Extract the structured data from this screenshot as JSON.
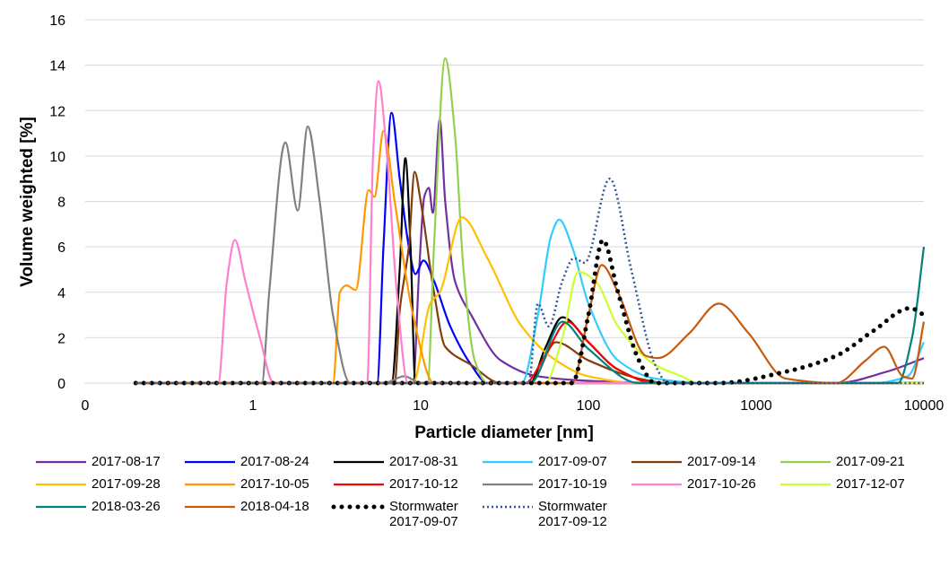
{
  "chart_data": {
    "type": "line",
    "xlabel": "Particle diameter [nm]",
    "ylabel": "Volume weighted [%]",
    "xscale": "log",
    "xlim": [
      0.1,
      10000
    ],
    "xticks": [
      {
        "value": 0.1,
        "label": "0"
      },
      1,
      10,
      100,
      1000,
      10000
    ],
    "ylim": [
      0,
      16
    ],
    "yticks": [
      0,
      2,
      4,
      6,
      8,
      10,
      12,
      14,
      16
    ],
    "grid": true,
    "legend": "bottom",
    "series": [
      {
        "name": "2017-08-17",
        "color": "#7030a0",
        "style": "solid",
        "x": [
          0.2,
          9,
          9.8,
          10.5,
          11.2,
          11.8,
          13,
          14,
          16,
          20,
          30,
          50,
          100,
          300,
          1000,
          3000,
          6000,
          10000
        ],
        "values": [
          0,
          0,
          5,
          8.2,
          8.6,
          7.5,
          11.6,
          8,
          4.5,
          3,
          1,
          0.3,
          0.1,
          0,
          0,
          0,
          0.5,
          1.1
        ]
      },
      {
        "name": "2017-08-24",
        "color": "#0000ff",
        "style": "solid",
        "x": [
          0.2,
          5.5,
          6,
          6.7,
          7.5,
          8.5,
          9.3,
          10.4,
          12,
          15,
          20,
          25,
          10000
        ],
        "values": [
          0,
          0,
          6,
          11.9,
          9,
          6,
          4.8,
          5.4,
          4.5,
          2.5,
          0.8,
          0,
          0
        ]
      },
      {
        "name": "2017-08-31",
        "color": "#000000",
        "style": "solid",
        "x": [
          0.2,
          6.7,
          7.5,
          8.1,
          8.7,
          9.3,
          45,
          55,
          70,
          100,
          150,
          250,
          10000
        ],
        "values": [
          0,
          0,
          5,
          9.9,
          6,
          0,
          0,
          1.5,
          2.9,
          1.8,
          0.6,
          0,
          0
        ]
      },
      {
        "name": "2017-09-07",
        "color": "#33ccff",
        "style": "solid",
        "x": [
          0.2,
          40,
          50,
          60,
          67,
          80,
          100,
          150,
          250,
          500,
          5000,
          8000,
          10000
        ],
        "values": [
          0,
          0,
          3,
          6.5,
          7.2,
          6,
          3.5,
          1,
          0.2,
          0,
          0,
          0.3,
          1.8
        ]
      },
      {
        "name": "2017-09-14",
        "color": "#843c0c",
        "style": "solid",
        "x": [
          0.2,
          7,
          7.5,
          8.5,
          9.2,
          10,
          12,
          14,
          20,
          30,
          45,
          64,
          100,
          200,
          300,
          10000
        ],
        "values": [
          0,
          0,
          3.2,
          6,
          9.3,
          8,
          4,
          1.6,
          0.8,
          0,
          0,
          1.8,
          1,
          0.2,
          0,
          0
        ]
      },
      {
        "name": "2017-09-21",
        "color": "#92d050",
        "style": "solid",
        "x": [
          0.2,
          11,
          12,
          14,
          16,
          18,
          21,
          25,
          10000
        ],
        "values": [
          0,
          0,
          6,
          14.3,
          11,
          5,
          1,
          0,
          0
        ]
      },
      {
        "name": "2017-09-28",
        "color": "#ffc000",
        "style": "solid",
        "x": [
          0.2,
          9,
          11.4,
          13,
          17.6,
          25,
          40,
          64,
          100,
          200,
          10000
        ],
        "values": [
          0,
          0,
          3.5,
          4,
          7.3,
          5.5,
          2.5,
          1,
          0.3,
          0,
          0
        ]
      },
      {
        "name": "2017-10-05",
        "color": "#ff9900",
        "style": "solid",
        "x": [
          0.2,
          3,
          3.3,
          3.6,
          4.1,
          4.9,
          5.3,
          6,
          7,
          9,
          12,
          10000
        ],
        "values": [
          0,
          0,
          4,
          4.3,
          4.1,
          8.5,
          8.2,
          11.1,
          8,
          3,
          0,
          0
        ]
      },
      {
        "name": "2017-10-12",
        "color": "#ff0000",
        "style": "solid",
        "x": [
          0.2,
          42,
          55,
          75,
          100,
          150,
          250,
          10000
        ],
        "values": [
          0,
          0,
          1.2,
          2.7,
          1.8,
          0.6,
          0,
          0
        ]
      },
      {
        "name": "2017-10-19",
        "color": "#808080",
        "style": "solid",
        "x": [
          0.2,
          1.13,
          1.25,
          1.56,
          1.85,
          2.12,
          2.5,
          3,
          3.8,
          6,
          8,
          10,
          10000
        ],
        "values": [
          0,
          0,
          4,
          10.6,
          7.6,
          11.3,
          8,
          3,
          0,
          0,
          0.3,
          0,
          0
        ]
      },
      {
        "name": "2017-10-26",
        "color": "#ff7fcf",
        "style": "solid",
        "x": [
          0.2,
          0.62,
          0.7,
          0.78,
          0.9,
          1.1,
          1.33,
          4.8,
          5.2,
          5.6,
          6.3,
          7.2,
          8.4,
          10000
        ],
        "values": [
          0,
          0,
          4.5,
          6.3,
          4.5,
          2,
          0,
          0,
          10,
          13.3,
          10,
          4,
          0,
          0
        ]
      },
      {
        "name": "2017-12-07",
        "color": "#ccff33",
        "style": "solid",
        "x": [
          0.2,
          55,
          70,
          87,
          110,
          150,
          250,
          360,
          450,
          10000
        ],
        "values": [
          0,
          0,
          2,
          4.9,
          4.5,
          2.5,
          0.8,
          0.3,
          0,
          0
        ]
      },
      {
        "name": "2018-03-26",
        "color": "#00827f",
        "style": "solid",
        "x": [
          0.2,
          45,
          70,
          100,
          200,
          7000,
          8500,
          10000
        ],
        "values": [
          0,
          0,
          2.7,
          1.5,
          0,
          0,
          2,
          6
        ]
      },
      {
        "name": "2018-04-18",
        "color": "#c55a11",
        "style": "solid",
        "x": [
          0.2,
          80,
          100,
          120,
          150,
          220,
          260,
          400,
          600,
          900,
          1500,
          3000,
          4500,
          5800,
          7500,
          8500,
          10000
        ],
        "values": [
          0,
          0,
          3,
          5.2,
          4,
          1.2,
          1.1,
          2.2,
          3.5,
          2.2,
          0.2,
          0,
          1,
          1.6,
          0.3,
          0.2,
          2.7
        ]
      },
      {
        "name": "Stormwater 2017-09-07",
        "color": "#000000",
        "style": "dots",
        "x": [
          0.2,
          80,
          100,
          122,
          150,
          200,
          250,
          600,
          1500,
          3000,
          5000,
          8300,
          10000
        ],
        "values": [
          0,
          0,
          3,
          6.3,
          4,
          1,
          0,
          0,
          0.5,
          1.2,
          2.3,
          3.3,
          3.0
        ]
      },
      {
        "name": "Stormwater 2017-09-12",
        "color": "#2f5597",
        "style": "dotted",
        "x": [
          0.2,
          44,
          50,
          58,
          70,
          82,
          95,
          134,
          180,
          250,
          300,
          10000
        ],
        "values": [
          0,
          0,
          3.5,
          2.5,
          4.5,
          5.5,
          5.3,
          9,
          5,
          0.8,
          0,
          0
        ]
      }
    ]
  }
}
